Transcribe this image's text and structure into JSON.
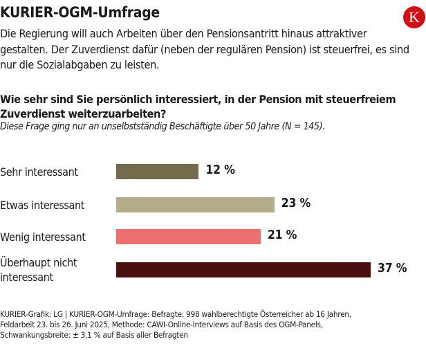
{
  "header": {
    "title": "KURIER-OGM-Umfrage",
    "logo_letter": "K",
    "logo_color": "#d40f14"
  },
  "intro": "Die Regierung will auch Arbeiten über den Pensionsantritt hinaus attraktiver gestalten. Der Zuverdienst dafür (neben der regulären Pension) ist steuerfrei, es sind nur die Sozialabgaben zu leisten.",
  "question": "Wie sehr sind Sie persönlich interessiert, in der Pension mit steuerfreiem Zuverdienst weiterzuarbeiten?",
  "note": "Diese Frage ging nur an unselbstständig Beschäftigte über 50 Jahre (N = 145).",
  "chart_data": {
    "type": "bar",
    "orientation": "horizontal",
    "title": "Wie sehr sind Sie persönlich interessiert, in der Pension mit steuerfreiem Zuverdienst weiterzuarbeiten?",
    "xlabel": "",
    "ylabel": "",
    "unit": "%",
    "categories": [
      "Sehr interessant",
      "Etwas interessant",
      "Wenig interessant",
      "Überhaupt nicht interessant"
    ],
    "category_lines": [
      [
        "Sehr interessant"
      ],
      [
        "Etwas interessant"
      ],
      [
        "Wenig interessant"
      ],
      [
        "Überhaupt nicht",
        "interessant"
      ]
    ],
    "values": [
      12,
      23,
      21,
      37
    ],
    "value_labels": [
      "12 %",
      "23 %",
      "21 %",
      "37 %"
    ],
    "colors": [
      "#736b4b",
      "#b3ab8a",
      "#ee6f6f",
      "#4a0f0f"
    ],
    "xlim": [
      0,
      37
    ],
    "grid": false,
    "legend": "none"
  },
  "footer": [
    "KURIER-Grafik: LG | KURIER-OGM-Umfrage: Befragte: 998 wahlberechtigte Österreicher ab 16 Jahren,",
    "Feldarbeit 23. bis 26. Juni 2025,  Methode: CAWI-Online-Interviews auf Basis des OGM-Panels,",
    "Schwankungsbreite: ± 3,1 % auf Basis aller Befragten"
  ]
}
